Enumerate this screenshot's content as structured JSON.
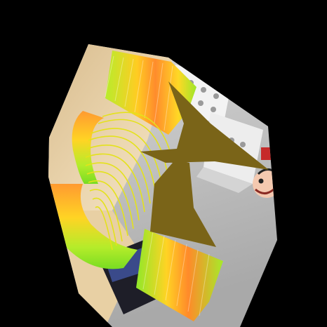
{
  "scene": {
    "background": "#000000",
    "table_color": "#e9d2aa",
    "floor_color": "#c4c4c4",
    "mask_color": "#7a6418",
    "spring_gradient": [
      "#ff8a28",
      "#ffd21e",
      "#c8f032",
      "#8ee820",
      "#5fd020"
    ],
    "dice_color": "#f2f2f2",
    "box_color": "#1e1e28"
  }
}
